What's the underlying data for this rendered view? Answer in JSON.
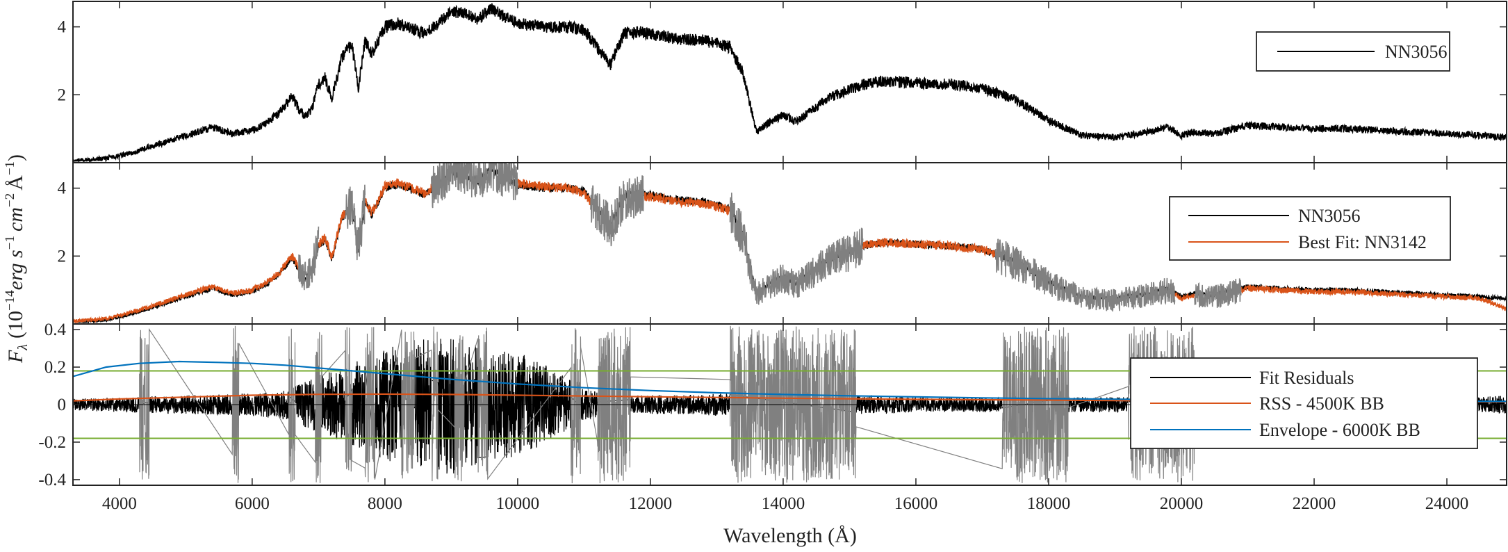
{
  "colors": {
    "spectrum": "#000000",
    "best_fit": "#d95319",
    "masked": "#808080",
    "envelope": "#0072bd",
    "threshold": "#77ac30",
    "axes": "#222222"
  },
  "chart_data": [
    {
      "type": "line",
      "panel": "top",
      "xlim": [
        3300,
        24900
      ],
      "ylim": [
        0,
        4.75
      ],
      "yticks": [
        2,
        4
      ],
      "series": [
        {
          "name": "NN3056",
          "color": "#000000",
          "x": [
            3300,
            3800,
            4200,
            4600,
            5000,
            5400,
            5700,
            6000,
            6200,
            6400,
            6600,
            6700,
            6800,
            6900,
            7000,
            7100,
            7200,
            7350,
            7500,
            7600,
            7700,
            7800,
            8000,
            8200,
            8400,
            8600,
            8800,
            9000,
            9200,
            9400,
            9600,
            9800,
            10000,
            10400,
            10800,
            11000,
            11200,
            11400,
            11600,
            11800,
            12000,
            12400,
            12800,
            13200,
            13400,
            13600,
            13800,
            14000,
            14200,
            14400,
            14600,
            14800,
            15000,
            15200,
            15500,
            16000,
            16500,
            17000,
            17500,
            18000,
            18500,
            19000,
            19500,
            19800,
            20000,
            20200,
            20500,
            20700,
            21000,
            21500,
            22000,
            22500,
            23000,
            23500,
            24000,
            24500,
            24900
          ],
          "y": [
            0.05,
            0.12,
            0.3,
            0.55,
            0.8,
            1.05,
            0.85,
            0.95,
            1.15,
            1.45,
            1.95,
            1.6,
            1.35,
            1.6,
            2.3,
            2.5,
            1.9,
            3.1,
            3.5,
            2.2,
            3.6,
            3.2,
            4.0,
            4.1,
            3.95,
            3.8,
            4.1,
            4.45,
            4.4,
            4.2,
            4.55,
            4.3,
            4.1,
            4.0,
            4.0,
            3.9,
            3.4,
            2.9,
            3.8,
            3.85,
            3.8,
            3.65,
            3.6,
            3.4,
            2.6,
            0.9,
            1.2,
            1.4,
            1.2,
            1.5,
            1.8,
            2.0,
            2.15,
            2.3,
            2.4,
            2.35,
            2.3,
            2.2,
            1.85,
            1.25,
            0.8,
            0.75,
            0.9,
            1.05,
            0.8,
            0.9,
            0.85,
            0.95,
            1.1,
            1.05,
            1.0,
            1.0,
            0.95,
            0.9,
            0.85,
            0.8,
            0.75
          ]
        }
      ],
      "legend": {
        "placement": "top-right",
        "entries": [
          "NN3056"
        ]
      }
    },
    {
      "type": "line",
      "panel": "middle",
      "xlim": [
        3300,
        24900
      ],
      "ylim": [
        0,
        4.75
      ],
      "yticks": [
        2,
        4
      ],
      "series": [
        {
          "name": "NN3056",
          "color": "#000000",
          "x": [
            3300,
            3800,
            4200,
            4600,
            5000,
            5400,
            5700,
            6000,
            6200,
            6400,
            6600,
            6700,
            6800,
            6900,
            7000,
            7100,
            7200,
            7350,
            7500,
            7600,
            7700,
            7800,
            8000,
            8200,
            8400,
            8600,
            8800,
            9000,
            9200,
            9400,
            9600,
            9800,
            10000,
            10400,
            10800,
            11000,
            11200,
            11400,
            11600,
            11800,
            12000,
            12400,
            12800,
            13200,
            13400,
            13600,
            13800,
            14000,
            14200,
            14400,
            14600,
            14800,
            15000,
            15200,
            15500,
            16000,
            16500,
            17000,
            17500,
            18000,
            18500,
            19000,
            19500,
            19800,
            20000,
            20200,
            20500,
            20700,
            21000,
            21500,
            22000,
            22500,
            23000,
            23500,
            24000,
            24500,
            24900
          ],
          "y": [
            0.05,
            0.12,
            0.3,
            0.55,
            0.8,
            1.05,
            0.85,
            0.95,
            1.15,
            1.45,
            1.95,
            1.6,
            1.35,
            1.6,
            2.3,
            2.5,
            1.9,
            3.1,
            3.5,
            2.2,
            3.6,
            3.2,
            4.0,
            4.1,
            3.95,
            3.8,
            4.1,
            4.45,
            4.4,
            4.2,
            4.55,
            4.3,
            4.1,
            4.0,
            4.0,
            3.9,
            3.4,
            2.9,
            3.8,
            3.85,
            3.8,
            3.65,
            3.6,
            3.4,
            2.6,
            0.9,
            1.2,
            1.4,
            1.2,
            1.5,
            1.8,
            2.0,
            2.15,
            2.3,
            2.4,
            2.35,
            2.3,
            2.2,
            1.85,
            1.25,
            0.8,
            0.75,
            0.9,
            1.05,
            0.8,
            0.9,
            0.85,
            0.95,
            1.1,
            1.05,
            1.0,
            1.0,
            0.95,
            0.9,
            0.85,
            0.8,
            0.75
          ]
        },
        {
          "name": "Best Fit: NN3142",
          "color": "#d95319",
          "x": [
            3300,
            3800,
            4200,
            4600,
            5000,
            5400,
            5700,
            6000,
            6200,
            6400,
            6600,
            6700,
            6800,
            6900,
            7000,
            7100,
            7200,
            7350,
            7500,
            7600,
            7700,
            7800,
            8000,
            8200,
            8400,
            8600,
            8800,
            9000,
            9200,
            9400,
            9600,
            9800,
            10000,
            10400,
            10800,
            11000,
            11200,
            11400,
            11600,
            11800,
            12000,
            12400,
            12800,
            13200,
            13400,
            13600,
            13800,
            14000,
            14200,
            14400,
            14600,
            14800,
            15000,
            15200,
            15500,
            16000,
            16500,
            17000,
            17500,
            18000,
            18500,
            19000,
            19500,
            19800,
            20000,
            20200,
            20500,
            20700,
            21000,
            21500,
            22000,
            22500,
            23000,
            23500,
            24000,
            24500,
            24900
          ],
          "y": [
            0.08,
            0.16,
            0.35,
            0.6,
            0.85,
            1.1,
            0.9,
            1.0,
            1.2,
            1.5,
            2.0,
            1.65,
            1.4,
            1.65,
            2.35,
            2.55,
            1.95,
            3.15,
            3.55,
            2.25,
            3.65,
            3.25,
            4.05,
            4.15,
            4.0,
            3.85,
            4.15,
            4.5,
            4.45,
            4.25,
            4.55,
            4.35,
            4.15,
            4.05,
            4.0,
            3.85,
            3.35,
            2.85,
            3.7,
            3.75,
            3.75,
            3.6,
            3.55,
            3.35,
            2.55,
            0.85,
            1.15,
            1.35,
            1.15,
            1.45,
            1.75,
            1.95,
            2.1,
            2.3,
            2.4,
            2.35,
            2.3,
            2.2,
            1.8,
            1.2,
            0.75,
            0.7,
            0.85,
            1.0,
            0.75,
            0.85,
            0.8,
            0.9,
            1.05,
            1.0,
            0.95,
            0.95,
            0.9,
            0.85,
            0.8,
            0.75,
            0.45
          ]
        }
      ],
      "masked_regions": [
        [
          6700,
          7000
        ],
        [
          7400,
          7700
        ],
        [
          8700,
          10000
        ],
        [
          11100,
          11900
        ],
        [
          13200,
          15200
        ],
        [
          17200,
          19900
        ],
        [
          20200,
          20900
        ]
      ],
      "legend": {
        "placement": "top-right",
        "entries": [
          "NN3056",
          "Best Fit: NN3142"
        ]
      }
    },
    {
      "type": "line",
      "panel": "bottom",
      "xlim": [
        3300,
        24900
      ],
      "ylim": [
        -0.43,
        0.43
      ],
      "yticks": [
        -0.4,
        -0.2,
        0,
        0.2,
        0.4
      ],
      "xticks": [
        4000,
        6000,
        8000,
        10000,
        12000,
        14000,
        16000,
        18000,
        20000,
        22000,
        24000
      ],
      "xlabel": "Wavelength (Å)",
      "series": [
        {
          "name": "Fit Residuals",
          "color": "#000000",
          "band_x": [
            3300,
            4000,
            5000,
            6000,
            6500,
            7000,
            7500,
            8000,
            8500,
            9000,
            9500,
            10000,
            10500,
            11000,
            11500,
            12000,
            12500,
            13000,
            13500,
            14000,
            14500,
            15000,
            15500,
            16000,
            16500,
            17000,
            17500,
            18000,
            18500,
            19000,
            19500,
            20000,
            20500,
            21000,
            21500,
            22000,
            22500,
            23000,
            23500,
            24000,
            24500,
            24900
          ],
          "band_amplitude": [
            0.03,
            0.04,
            0.05,
            0.06,
            0.08,
            0.15,
            0.22,
            0.3,
            0.35,
            0.38,
            0.3,
            0.28,
            0.2,
            0.08,
            0.05,
            0.05,
            0.05,
            0.06,
            0.06,
            0.06,
            0.05,
            0.05,
            0.05,
            0.04,
            0.04,
            0.04,
            0.04,
            0.04,
            0.04,
            0.04,
            0.04,
            0.04,
            0.03,
            0.03,
            0.03,
            0.03,
            0.03,
            0.03,
            0.03,
            0.03,
            0.04,
            0.05
          ]
        },
        {
          "name": "RSS - 4500K BB",
          "color": "#d95319",
          "x": [
            3300,
            4000,
            5000,
            6000,
            7000,
            8000,
            9000,
            10000,
            11000,
            12000,
            13000,
            14000,
            15000,
            16000,
            17000,
            18000,
            19000,
            20000,
            21000,
            22000,
            23000,
            24000,
            24900
          ],
          "y": [
            0.02,
            0.03,
            0.04,
            0.05,
            0.055,
            0.056,
            0.054,
            0.05,
            0.046,
            0.042,
            0.038,
            0.034,
            0.031,
            0.028,
            0.026,
            0.024,
            0.022,
            0.02,
            0.019,
            0.018,
            0.017,
            0.016,
            0.015
          ]
        },
        {
          "name": "Envelope - 6000K BB",
          "color": "#0072bd",
          "x": [
            3300,
            3800,
            4300,
            4900,
            5500,
            6000,
            6500,
            7000,
            7500,
            8000,
            9000,
            10000,
            11000,
            12000,
            13000,
            14000,
            15000,
            16000,
            17000,
            18000,
            19000,
            20000,
            21000,
            22000,
            23000,
            24000,
            24900
          ],
          "y": [
            0.15,
            0.2,
            0.22,
            0.23,
            0.225,
            0.22,
            0.21,
            0.195,
            0.18,
            0.165,
            0.135,
            0.11,
            0.09,
            0.075,
            0.063,
            0.054,
            0.047,
            0.041,
            0.036,
            0.032,
            0.029,
            0.026,
            0.024,
            0.022,
            0.02,
            0.018,
            0.017
          ]
        }
      ],
      "thresholds": [
        0.18,
        -0.18
      ],
      "masked_regions": [
        [
          4300,
          4450
        ],
        [
          5700,
          5800
        ],
        [
          6550,
          6650
        ],
        [
          6950,
          7050
        ],
        [
          7400,
          7500
        ],
        [
          7700,
          7850
        ],
        [
          8250,
          8450
        ],
        [
          8700,
          8800
        ],
        [
          9050,
          9200
        ],
        [
          9400,
          9550
        ],
        [
          10800,
          10950
        ],
        [
          11200,
          11700
        ],
        [
          13200,
          15100
        ],
        [
          17300,
          18300
        ],
        [
          19200,
          20200
        ]
      ],
      "legend": {
        "placement": "right",
        "entries": [
          "Fit Residuals",
          "RSS - 4500K BB",
          "Envelope - 6000K BB"
        ]
      }
    }
  ],
  "ylabel": {
    "prefix": "F",
    "subscript": "λ",
    "open": "(10",
    "exp1": "−14",
    "unit_erg": "erg s",
    "exp2": "−1",
    "unit_cm": "cm",
    "exp3": "−2",
    "unit_ang": "Å",
    "exp4": "−1",
    "close": ")"
  }
}
